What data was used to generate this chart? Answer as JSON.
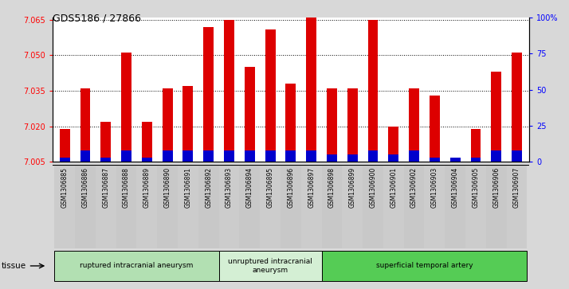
{
  "title": "GDS5186 / 27866",
  "samples": [
    "GSM1306885",
    "GSM1306886",
    "GSM1306887",
    "GSM1306888",
    "GSM1306889",
    "GSM1306890",
    "GSM1306891",
    "GSM1306892",
    "GSM1306893",
    "GSM1306894",
    "GSM1306895",
    "GSM1306896",
    "GSM1306897",
    "GSM1306898",
    "GSM1306899",
    "GSM1306900",
    "GSM1306901",
    "GSM1306902",
    "GSM1306903",
    "GSM1306904",
    "GSM1306905",
    "GSM1306906",
    "GSM1306907"
  ],
  "transformed_count": [
    7.019,
    7.036,
    7.022,
    7.051,
    7.022,
    7.036,
    7.037,
    7.062,
    7.065,
    7.045,
    7.061,
    7.038,
    7.072,
    7.036,
    7.036,
    7.065,
    7.02,
    7.036,
    7.033,
    7.006,
    7.019,
    7.043,
    7.051
  ],
  "percentile_rank": [
    3,
    8,
    3,
    8,
    3,
    8,
    8,
    8,
    8,
    8,
    8,
    8,
    8,
    5,
    5,
    8,
    5,
    8,
    3,
    3,
    3,
    8,
    8
  ],
  "ylim_left": [
    7.005,
    7.066
  ],
  "ylim_right": [
    0,
    100
  ],
  "yticks_left": [
    7.005,
    7.02,
    7.035,
    7.05,
    7.065
  ],
  "yticks_right": [
    0,
    25,
    50,
    75,
    100
  ],
  "groups": [
    {
      "label": "ruptured intracranial aneurysm",
      "start": 0,
      "end": 8,
      "color": "#b2e0b2"
    },
    {
      "label": "unruptured intracranial\naneurysm",
      "start": 8,
      "end": 13,
      "color": "#d4efd4"
    },
    {
      "label": "superficial temporal artery",
      "start": 13,
      "end": 23,
      "color": "#55cc55"
    }
  ],
  "bar_color_red": "#dd0000",
  "bar_color_blue": "#0000cc",
  "background_color": "#d8d8d8",
  "plot_bg_color": "#ffffff",
  "base_value": 7.005,
  "tick_label_bg": "#cccccc"
}
